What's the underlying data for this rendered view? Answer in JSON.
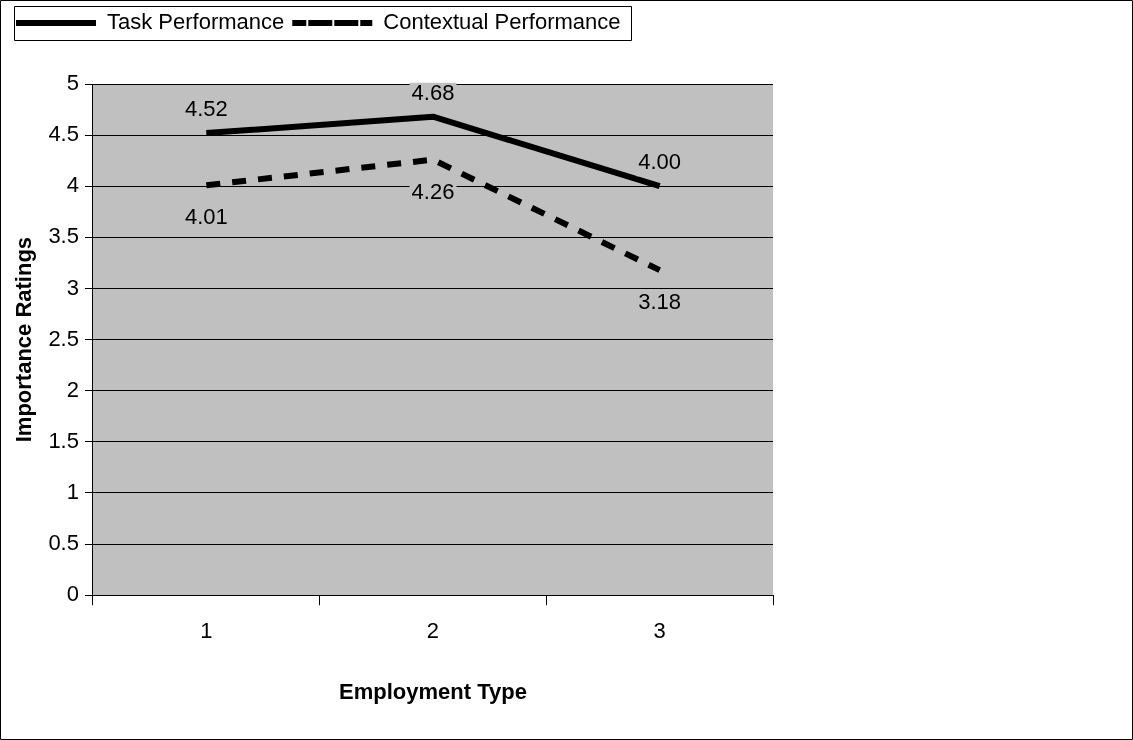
{
  "chart_data": {
    "type": "line",
    "xlabel": "Employment Type",
    "ylabel": "Importance Ratings",
    "categories": [
      "1",
      "2",
      "3"
    ],
    "series": [
      {
        "name": "Task Performance",
        "color": "#000000",
        "line_style": "solid",
        "values": [
          4.52,
          4.68,
          4.0
        ],
        "value_labels": [
          "4.52",
          "4.68",
          "4.00"
        ]
      },
      {
        "name": "Contextual Performance",
        "color": "#000000",
        "line_style": "dashed",
        "values": [
          4.01,
          4.26,
          3.18
        ],
        "value_labels": [
          "4.01",
          "4.26",
          "3.18"
        ]
      }
    ],
    "ylim": [
      0,
      5
    ],
    "yticks": [
      0,
      0.5,
      1,
      1.5,
      2,
      2.5,
      3,
      3.5,
      4,
      4.5,
      5
    ],
    "grid": "y",
    "legend": "top",
    "marker": "none"
  }
}
